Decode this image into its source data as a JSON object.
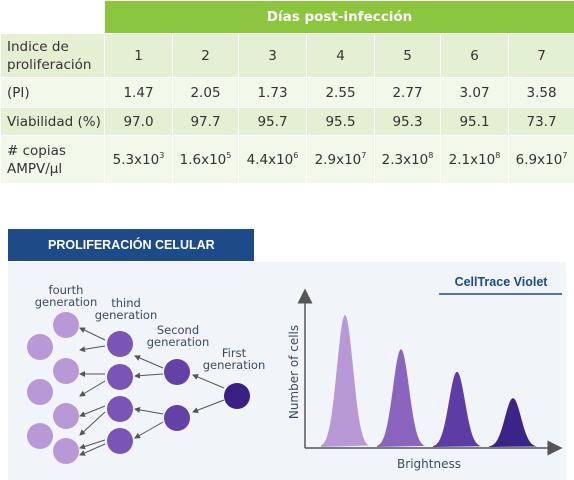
{
  "table": {
    "header": "Días post-infección",
    "columns": [
      "1",
      "2",
      "3",
      "4",
      "5",
      "6",
      "7"
    ],
    "rows": [
      {
        "label": "Indice de proliferación",
        "values": [
          "1",
          "2",
          "3",
          "4",
          "5",
          "6",
          "7"
        ]
      },
      {
        "label": "(PI)",
        "values": [
          "1.47",
          "2.05",
          "1.73",
          "2.55",
          "2.77",
          "3.07",
          "3.58"
        ]
      },
      {
        "label": "Viabilidad (%)",
        "values": [
          "97.0",
          "97.7",
          "95.7",
          "95.5",
          "95.3",
          "95.1",
          "73.7"
        ]
      },
      {
        "label": "# copias AMPV/µl",
        "values": [
          {
            "m": "5.3x10",
            "e": "3"
          },
          {
            "m": "1.6x10",
            "e": "5"
          },
          {
            "m": "4.4x10",
            "e": "6"
          },
          {
            "m": "2.9x10",
            "e": "7"
          },
          {
            "m": "2.3x10",
            "e": "8"
          },
          {
            "m": "2.1x10",
            "e": "8"
          },
          {
            "m": "6.9x10",
            "e": "7"
          }
        ]
      }
    ]
  },
  "section_title": "PROLIFERACIÓN CELULAR",
  "diagram": {
    "labels": {
      "fourth_1": "fourth",
      "fourth_2": "generation",
      "third_1": "thind",
      "third_2": "generation",
      "second_1": "Second",
      "second_2": "generation",
      "first_1": "First",
      "first_2": "generation"
    },
    "colors": {
      "fourth": "#b899d6",
      "third": "#7a55b5",
      "second": "#6341a6",
      "first": "#3a2085"
    }
  },
  "chart_data": {
    "type": "area",
    "title": "CellTrace Violet",
    "xlabel": "Brightness",
    "ylabel": "Number of cells",
    "series": [
      {
        "peak": 1.0,
        "color": "#b899d6"
      },
      {
        "peak": 0.74,
        "color": "#8a64bf"
      },
      {
        "peak": 0.57,
        "color": "#5d3ca3"
      },
      {
        "peak": 0.37,
        "color": "#3b2388"
      }
    ]
  }
}
